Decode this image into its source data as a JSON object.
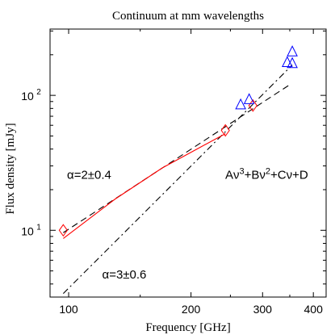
{
  "chart_data": {
    "type": "scatter",
    "title": "Continuum at mm wavelengths",
    "xlabel": "Frequency [GHz]",
    "ylabel": "Flux density [mJy]",
    "xscale": "log",
    "yscale": "log",
    "xlim": [
      90,
      430
    ],
    "ylim": [
      3.2,
      310
    ],
    "xticks": [
      {
        "value": 100,
        "label": "100"
      },
      {
        "value": 200,
        "label": "200"
      },
      {
        "value": 300,
        "label": "300"
      },
      {
        "value": 400,
        "label": "400"
      }
    ],
    "yticks": [
      {
        "value": 10,
        "base": "10",
        "exp": "1"
      },
      {
        "value": 100,
        "base": "10",
        "exp": "2"
      }
    ],
    "series": [
      {
        "marker": "diamond",
        "color": "#ff0000",
        "points": [
          {
            "x": 97,
            "y": 10.0
          },
          {
            "x": 243,
            "y": 55
          },
          {
            "x": 284,
            "y": 84
          }
        ]
      },
      {
        "marker": "triangle",
        "color": "#0000ff",
        "points": [
          {
            "x": 265,
            "y": 85
          },
          {
            "x": 278,
            "y": 93
          },
          {
            "x": 345,
            "y": 175
          },
          {
            "x": 355,
            "y": 172
          },
          {
            "x": 355,
            "y": 210
          }
        ]
      }
    ],
    "lines": [
      {
        "style": "dashed",
        "color": "#000000",
        "points": [
          [
            97,
            9.6
          ],
          [
            350,
            120
          ]
        ]
      },
      {
        "style": "dashdot",
        "color": "#000000",
        "points": [
          [
            97,
            3.4
          ],
          [
            355,
            168
          ]
        ]
      },
      {
        "style": "solid",
        "color": "#ff0000",
        "points": [
          [
            97,
            8.7
          ],
          [
            130,
            17
          ],
          [
            170,
            29
          ],
          [
            210,
            41
          ],
          [
            243,
            52
          ]
        ]
      }
    ],
    "annotations": [
      {
        "text": "α=2±0.4",
        "x": 100,
        "y": 24
      },
      {
        "text": "α=3±0.6",
        "x": 122,
        "y": 4.4
      }
    ],
    "formula": {
      "anchor": {
        "x": 245,
        "y": 24
      },
      "parts": [
        {
          "text": "Aν"
        },
        {
          "text": "3",
          "sup": true
        },
        {
          "text": "+Bν"
        },
        {
          "text": "2",
          "sup": true
        },
        {
          "text": "+Cν+D"
        }
      ]
    },
    "grid": false,
    "legend": "none"
  }
}
